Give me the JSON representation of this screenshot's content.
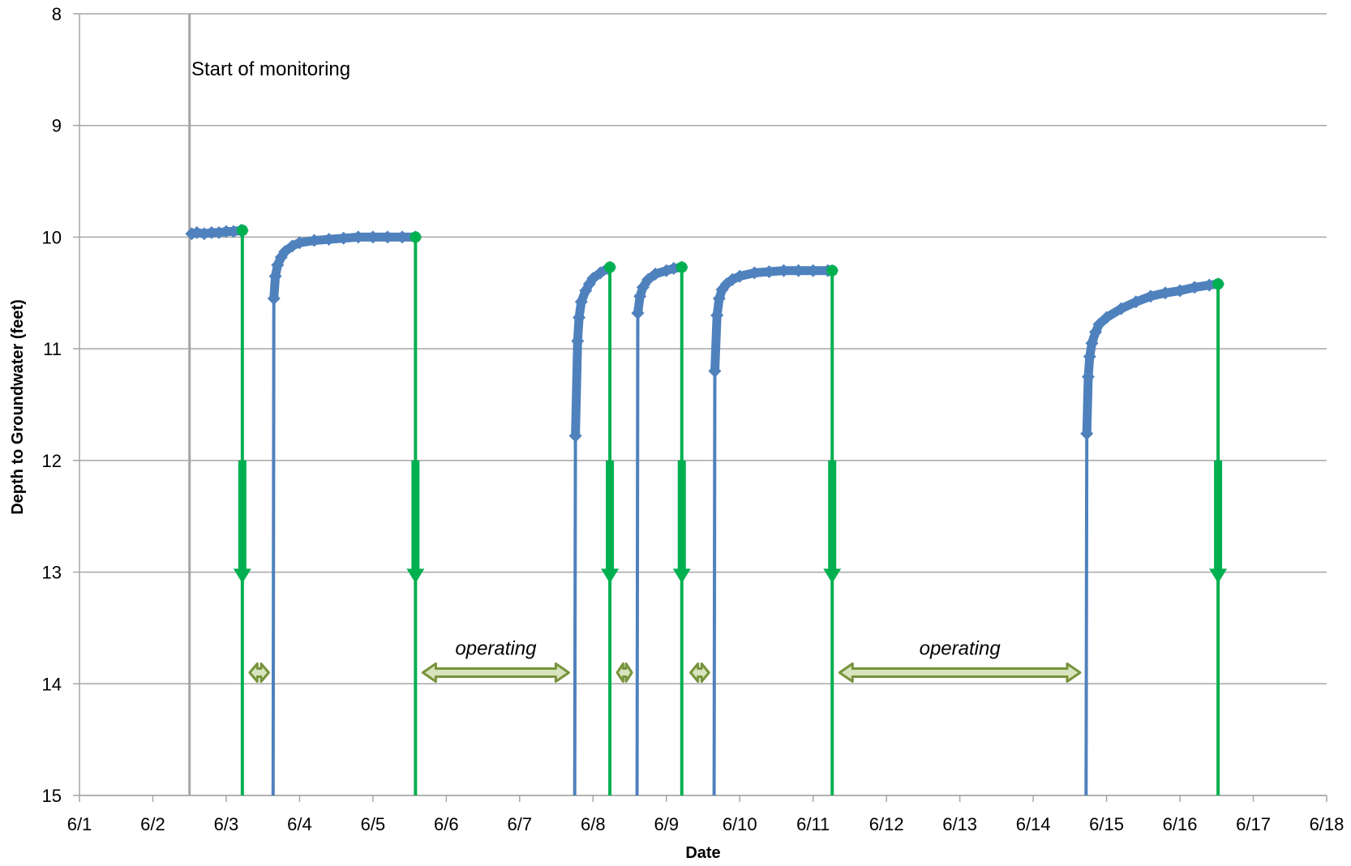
{
  "chart_data": {
    "type": "line",
    "title": "",
    "xlabel": "Date",
    "ylabel": "Depth to Groundwater (feet)",
    "x_axis": {
      "type": "date",
      "range": [
        "6/1",
        "6/18"
      ],
      "tick_labels": [
        "6/1",
        "6/2",
        "6/3",
        "6/4",
        "6/5",
        "6/6",
        "6/7",
        "6/8",
        "6/9",
        "6/10",
        "6/11",
        "6/12",
        "6/13",
        "6/14",
        "6/15",
        "6/16",
        "6/17",
        "6/18"
      ]
    },
    "y_axis": {
      "range": [
        8,
        15
      ],
      "inverted": true,
      "tick_labels": [
        "8",
        "9",
        "10",
        "11",
        "12",
        "13",
        "14",
        "15"
      ]
    },
    "grid": {
      "horizontal": true,
      "vertical": false
    },
    "colors": {
      "series": "#4f81bd",
      "pump_off": "#00b050",
      "operating_arrow": "#77933c",
      "operating_arrow_fill": "#d7e4bd",
      "start_line": "#a6a6a6",
      "grid": "#a6a6a6"
    },
    "series": [
      {
        "segments": [
          {
            "points": [
              [
                2.53,
                9.97
              ],
              [
                2.6,
                9.96
              ],
              [
                2.7,
                9.97
              ],
              [
                2.8,
                9.96
              ],
              [
                2.9,
                9.96
              ],
              [
                3.0,
                9.95
              ],
              [
                3.1,
                9.95
              ],
              [
                3.2,
                9.94
              ],
              [
                3.22,
                9.94
              ]
            ]
          },
          {
            "points": [
              [
                3.64,
                15.0
              ],
              [
                3.65,
                10.55
              ],
              [
                3.67,
                10.35
              ],
              [
                3.7,
                10.25
              ],
              [
                3.75,
                10.18
              ],
              [
                3.8,
                10.13
              ],
              [
                3.9,
                10.08
              ],
              [
                4.0,
                10.05
              ],
              [
                4.2,
                10.03
              ],
              [
                4.4,
                10.02
              ],
              [
                4.6,
                10.01
              ],
              [
                4.8,
                10.0
              ],
              [
                5.0,
                10.0
              ],
              [
                5.2,
                10.0
              ],
              [
                5.4,
                10.0
              ],
              [
                5.58,
                10.0
              ]
            ]
          },
          {
            "points": [
              [
                7.75,
                15.0
              ],
              [
                7.76,
                11.78
              ],
              [
                7.79,
                10.93
              ],
              [
                7.81,
                10.72
              ],
              [
                7.84,
                10.58
              ],
              [
                7.9,
                10.48
              ],
              [
                7.95,
                10.42
              ],
              [
                8.0,
                10.37
              ],
              [
                8.1,
                10.32
              ],
              [
                8.2,
                10.28
              ],
              [
                8.23,
                10.27
              ]
            ]
          },
          {
            "points": [
              [
                8.6,
                15.0
              ],
              [
                8.61,
                10.68
              ],
              [
                8.64,
                10.53
              ],
              [
                8.68,
                10.45
              ],
              [
                8.75,
                10.38
              ],
              [
                8.85,
                10.33
              ],
              [
                9.0,
                10.3
              ],
              [
                9.1,
                10.28
              ],
              [
                9.21,
                10.27
              ]
            ]
          },
          {
            "points": [
              [
                9.65,
                15.0
              ],
              [
                9.66,
                11.2
              ],
              [
                9.69,
                10.7
              ],
              [
                9.72,
                10.55
              ],
              [
                9.76,
                10.47
              ],
              [
                9.82,
                10.42
              ],
              [
                9.9,
                10.38
              ],
              [
                10.0,
                10.35
              ],
              [
                10.2,
                10.32
              ],
              [
                10.4,
                10.31
              ],
              [
                10.6,
                10.3
              ],
              [
                10.8,
                10.3
              ],
              [
                11.0,
                10.3
              ],
              [
                11.2,
                10.3
              ],
              [
                11.26,
                10.3
              ]
            ]
          },
          {
            "points": [
              [
                14.72,
                15.0
              ],
              [
                14.73,
                11.76
              ],
              [
                14.75,
                11.25
              ],
              [
                14.77,
                11.07
              ],
              [
                14.8,
                10.95
              ],
              [
                14.85,
                10.85
              ],
              [
                14.9,
                10.78
              ],
              [
                15.0,
                10.72
              ],
              [
                15.2,
                10.64
              ],
              [
                15.4,
                10.58
              ],
              [
                15.6,
                10.53
              ],
              [
                15.8,
                10.5
              ],
              [
                16.0,
                10.48
              ],
              [
                16.2,
                10.45
              ],
              [
                16.4,
                10.43
              ],
              [
                16.52,
                10.42
              ]
            ]
          }
        ]
      }
    ],
    "pump_off_events": [
      {
        "x": 3.22,
        "y": 9.94
      },
      {
        "x": 5.58,
        "y": 10.0
      },
      {
        "x": 8.23,
        "y": 10.27
      },
      {
        "x": 9.21,
        "y": 10.27
      },
      {
        "x": 11.26,
        "y": 10.3
      },
      {
        "x": 16.52,
        "y": 10.42
      }
    ],
    "pump_arrow": {
      "shaft_from": 12.0,
      "arrow_tip": 13.1
    },
    "start_of_monitoring": {
      "x": 2.5,
      "label": "Start of monitoring"
    },
    "operating_periods": [
      {
        "x_start": 3.32,
        "x_end": 3.58,
        "y": 13.9,
        "label": ""
      },
      {
        "x_start": 5.68,
        "x_end": 7.67,
        "y": 13.9,
        "label": "operating"
      },
      {
        "x_start": 8.33,
        "x_end": 8.53,
        "y": 13.9,
        "label": ""
      },
      {
        "x_start": 9.33,
        "x_end": 9.58,
        "y": 13.9,
        "label": ""
      },
      {
        "x_start": 11.36,
        "x_end": 14.64,
        "y": 13.9,
        "label": "operating"
      }
    ]
  }
}
